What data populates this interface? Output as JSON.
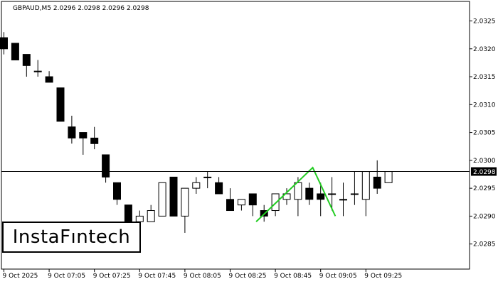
{
  "chart_data": {
    "type": "candlestick",
    "title": "GBPAUD,M5  2.0296 2.0298 2.0296 2.0298",
    "current_price": 2.0298,
    "current_price_label": "2.0298",
    "ylim": [
      2.02805,
      2.03285
    ],
    "y_ticks": [
      {
        "value": 2.0325,
        "label": "2.0325"
      },
      {
        "value": 2.032,
        "label": "2.0320"
      },
      {
        "value": 2.0315,
        "label": "2.0315"
      },
      {
        "value": 2.031,
        "label": "2.0310"
      },
      {
        "value": 2.0305,
        "label": "2.0305"
      },
      {
        "value": 2.03,
        "label": "2.0300"
      },
      {
        "value": 2.0295,
        "label": "2.0295"
      },
      {
        "value": 2.029,
        "label": "2.0290"
      },
      {
        "value": 2.0285,
        "label": "2.0285"
      }
    ],
    "x_ticks": [
      {
        "index": 0,
        "label": "9 Oct 2025"
      },
      {
        "index": 4,
        "label": "9 Oct 07:05"
      },
      {
        "index": 8,
        "label": "9 Oct 07:25"
      },
      {
        "index": 12,
        "label": "9 Oct 07:45"
      },
      {
        "index": 16,
        "label": "9 Oct 08:05"
      },
      {
        "index": 20,
        "label": "9 Oct 08:25"
      },
      {
        "index": 24,
        "label": "9 Oct 08:45"
      },
      {
        "index": 28,
        "label": "9 Oct 09:05"
      },
      {
        "index": 32,
        "label": "9 Oct 09:25"
      }
    ],
    "candles": [
      {
        "open": 2.0322,
        "high": 2.0323,
        "low": 2.0319,
        "close": 2.032
      },
      {
        "open": 2.0321,
        "high": 2.0321,
        "low": 2.0318,
        "close": 2.0318
      },
      {
        "open": 2.0319,
        "high": 2.0319,
        "low": 2.0315,
        "close": 2.0317
      },
      {
        "open": 2.0316,
        "high": 2.0318,
        "low": 2.0315,
        "close": 2.0316
      },
      {
        "open": 2.0315,
        "high": 2.0316,
        "low": 2.0314,
        "close": 2.0314
      },
      {
        "open": 2.0313,
        "high": 2.0313,
        "low": 2.0307,
        "close": 2.0307
      },
      {
        "open": 2.0306,
        "high": 2.0308,
        "low": 2.0303,
        "close": 2.0304
      },
      {
        "open": 2.0305,
        "high": 2.0305,
        "low": 2.0301,
        "close": 2.0304
      },
      {
        "open": 2.0304,
        "high": 2.0306,
        "low": 2.0302,
        "close": 2.0303
      },
      {
        "open": 2.0301,
        "high": 2.0301,
        "low": 2.0296,
        "close": 2.0297
      },
      {
        "open": 2.0296,
        "high": 2.0296,
        "low": 2.0292,
        "close": 2.0293
      },
      {
        "open": 2.0292,
        "high": 2.0292,
        "low": 2.0287,
        "close": 2.0288
      },
      {
        "open": 2.0289,
        "high": 2.0291,
        "low": 2.0287,
        "close": 2.029
      },
      {
        "open": 2.0289,
        "high": 2.0292,
        "low": 2.0289,
        "close": 2.0291
      },
      {
        "open": 2.029,
        "high": 2.0296,
        "low": 2.029,
        "close": 2.0296
      },
      {
        "open": 2.0297,
        "high": 2.0297,
        "low": 2.029,
        "close": 2.029
      },
      {
        "open": 2.029,
        "high": 2.0295,
        "low": 2.0287,
        "close": 2.0295
      },
      {
        "open": 2.0295,
        "high": 2.0297,
        "low": 2.0294,
        "close": 2.0296
      },
      {
        "open": 2.0297,
        "high": 2.0298,
        "low": 2.0295,
        "close": 2.0297
      },
      {
        "open": 2.0296,
        "high": 2.0297,
        "low": 2.0294,
        "close": 2.0294
      },
      {
        "open": 2.0293,
        "high": 2.0295,
        "low": 2.0291,
        "close": 2.0291
      },
      {
        "open": 2.0292,
        "high": 2.0293,
        "low": 2.0291,
        "close": 2.0293
      },
      {
        "open": 2.0294,
        "high": 2.0294,
        "low": 2.029,
        "close": 2.0292
      },
      {
        "open": 2.0291,
        "high": 2.0292,
        "low": 2.0289,
        "close": 2.029
      },
      {
        "open": 2.0291,
        "high": 2.0294,
        "low": 2.029,
        "close": 2.0294
      },
      {
        "open": 2.0293,
        "high": 2.0295,
        "low": 2.0292,
        "close": 2.0294
      },
      {
        "open": 2.0293,
        "high": 2.0297,
        "low": 2.029,
        "close": 2.0296
      },
      {
        "open": 2.0295,
        "high": 2.0296,
        "low": 2.0292,
        "close": 2.0293
      },
      {
        "open": 2.0294,
        "high": 2.0296,
        "low": 2.029,
        "close": 2.0293
      },
      {
        "open": 2.0294,
        "high": 2.0297,
        "low": 2.0291,
        "close": 2.0294
      },
      {
        "open": 2.0293,
        "high": 2.0296,
        "low": 2.029,
        "close": 2.0293
      },
      {
        "open": 2.0294,
        "high": 2.0298,
        "low": 2.0292,
        "close": 2.0294
      },
      {
        "open": 2.0293,
        "high": 2.0298,
        "low": 2.029,
        "close": 2.0298
      },
      {
        "open": 2.0297,
        "high": 2.03,
        "low": 2.0294,
        "close": 2.0295
      },
      {
        "open": 2.0296,
        "high": 2.0298,
        "low": 2.0296,
        "close": 2.0298
      }
    ],
    "pattern": {
      "name": "Double Top",
      "color": "#22cc22",
      "points": [
        {
          "index": 22.3,
          "price": 2.0289
        },
        {
          "index": 27.3,
          "price": 2.02987
        },
        {
          "index": 29.3,
          "price": 2.029
        }
      ]
    },
    "colors": {
      "bear_body": "#000000",
      "bull_body": "#ffffff",
      "wick": "#000000",
      "current_line": "#000000",
      "axis": "#000000"
    }
  },
  "logo_text": "InstaFıntech"
}
